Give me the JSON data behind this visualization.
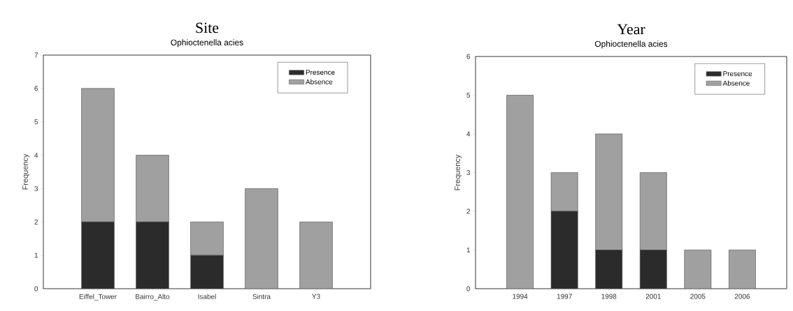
{
  "chart_data": [
    {
      "type": "bar",
      "title": "Site",
      "subtitle": "Ophioctenella acies",
      "ylabel": "Frequency",
      "stacked": true,
      "legend": "top right",
      "grid": false,
      "categories": [
        "Eiffel_Tower",
        "Bairro_Alto",
        "Isabel",
        "Sintra",
        "Y3"
      ],
      "series": [
        {
          "name": "Presence",
          "color": "#2b2b2b",
          "values": [
            2,
            2,
            1,
            0,
            0
          ]
        },
        {
          "name": "Absence",
          "color": "#a0a0a0",
          "values": [
            4,
            2,
            1,
            3,
            2
          ]
        }
      ],
      "ylim": [
        0,
        7
      ],
      "yticks": [
        0,
        1,
        2,
        3,
        4,
        5,
        6,
        7
      ]
    },
    {
      "type": "bar",
      "title": "Year",
      "subtitle": "Ophioctenella acies",
      "ylabel": "Frequency",
      "stacked": true,
      "legend": "top right",
      "grid": false,
      "categories": [
        "1994",
        "1997",
        "1998",
        "2001",
        "2005",
        "2006"
      ],
      "series": [
        {
          "name": "Presence",
          "color": "#2b2b2b",
          "values": [
            0,
            2,
            1,
            1,
            0,
            0
          ]
        },
        {
          "name": "Absence",
          "color": "#a0a0a0",
          "values": [
            5,
            1,
            3,
            2,
            1,
            1
          ]
        }
      ],
      "ylim": [
        0,
        6
      ],
      "yticks": [
        0,
        1,
        2,
        3,
        4,
        5,
        6
      ]
    }
  ]
}
